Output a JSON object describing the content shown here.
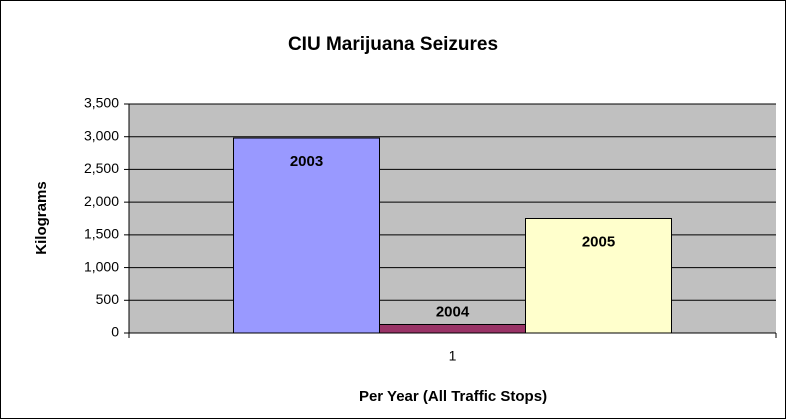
{
  "chart_data": {
    "type": "bar",
    "title": "CIU Marijuana Seizures",
    "x_label": "Per Year (All Traffic Stops)",
    "y_label": "Kilograms",
    "categories": [
      "1"
    ],
    "series": [
      {
        "name": "2003",
        "color": "#9999ff",
        "values": [
          2980
        ]
      },
      {
        "name": "2004",
        "color": "#993366",
        "values": [
          130
        ]
      },
      {
        "name": "2005",
        "color": "#ffffcc",
        "values": [
          1750
        ]
      }
    ],
    "ylim": [
      0,
      3500
    ],
    "yticks": [
      0,
      500,
      {
        "value": 1000,
        "label": "1,000"
      },
      {
        "value": 1500,
        "label": "1,500"
      },
      {
        "value": 2000,
        "label": "2,000"
      },
      {
        "value": 2500,
        "label": "2,500"
      },
      {
        "value": 3000,
        "label": "3,000"
      },
      {
        "value": 3500,
        "label": "3,500"
      }
    ],
    "grid": true,
    "plot_background": "#c0c0c0"
  }
}
